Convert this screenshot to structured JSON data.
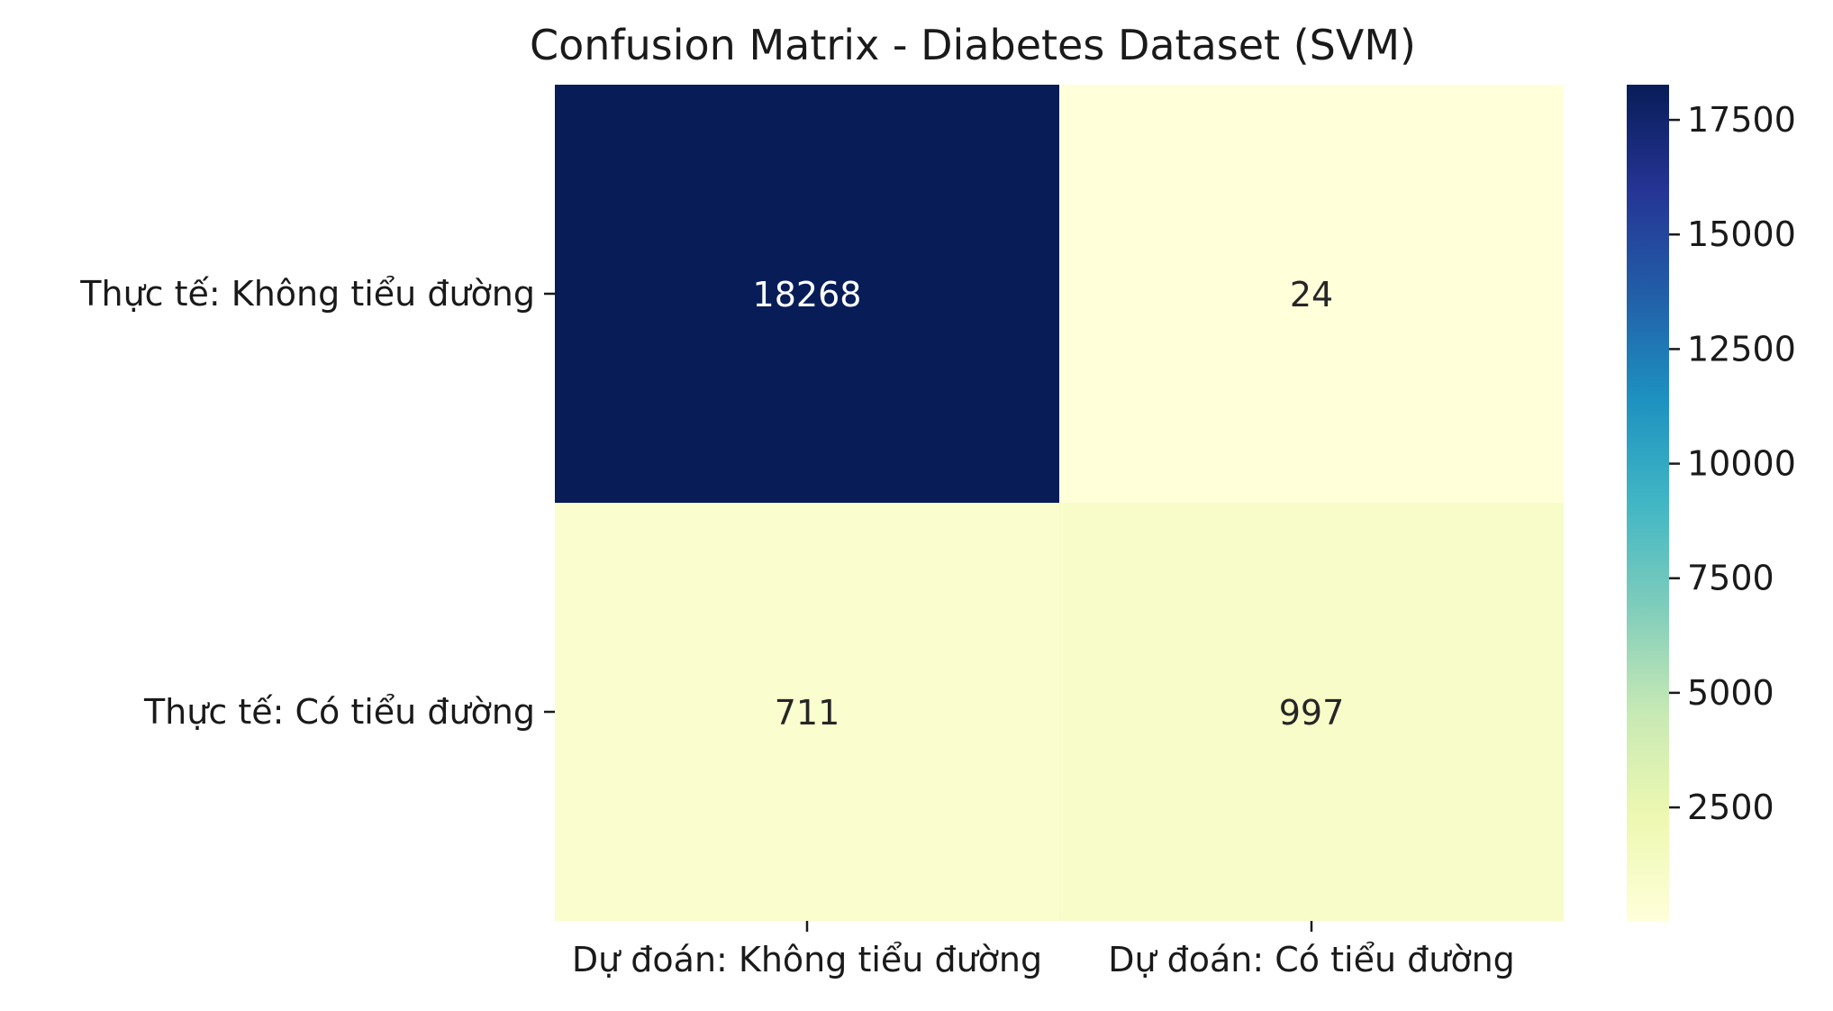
{
  "chart_data": {
    "type": "heatmap",
    "title": "Confusion Matrix - Diabetes Dataset (SVM)",
    "x_categories": [
      "Dự đoán: Không tiểu đường",
      "Dự đoán: Có tiểu đường"
    ],
    "y_categories": [
      "Thực tế: Không tiểu đường",
      "Thực tế: Có tiểu đường"
    ],
    "values": [
      [
        18268,
        24
      ],
      [
        711,
        997
      ]
    ],
    "colormap": "YlGnBu",
    "colorbar": {
      "range": [
        24,
        18268
      ],
      "ticks": [
        2500,
        5000,
        7500,
        10000,
        12500,
        15000,
        17500
      ]
    },
    "text_colors": {
      "dark": "#262626",
      "light": "#ffffff"
    }
  }
}
